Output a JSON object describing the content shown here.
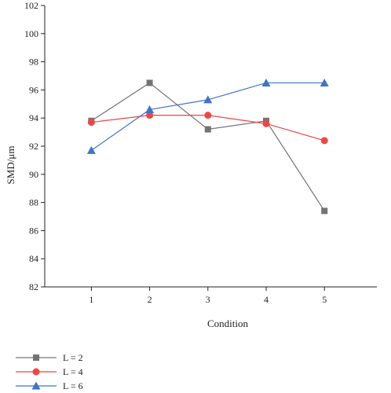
{
  "chart_data": {
    "type": "line",
    "xlabel": "Condition",
    "ylabel": "SMD/μm",
    "x": [
      1,
      2,
      3,
      4,
      5
    ],
    "xlim": [
      0.2,
      5.9
    ],
    "ylim": [
      82,
      102
    ],
    "yticks": [
      82,
      84,
      86,
      88,
      90,
      92,
      94,
      96,
      98,
      100,
      102
    ],
    "grid": false,
    "legend_position": "bottom-left",
    "series": [
      {
        "name": "L = 2",
        "color": "#737373",
        "marker": "square",
        "values": [
          93.8,
          96.5,
          93.2,
          93.8,
          87.4
        ]
      },
      {
        "name": "L = 4",
        "color": "#f04545",
        "marker": "circle",
        "values": [
          93.7,
          94.2,
          94.2,
          93.6,
          92.4
        ]
      },
      {
        "name": "L = 6",
        "color": "#3f73c4",
        "marker": "triangle",
        "values": [
          91.7,
          94.6,
          95.3,
          96.5,
          96.5
        ]
      }
    ]
  }
}
